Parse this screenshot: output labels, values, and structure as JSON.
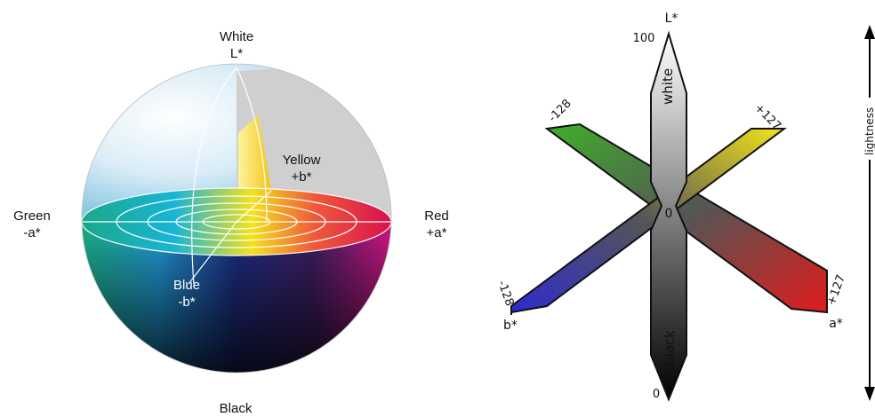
{
  "sphere": {
    "white": "White",
    "l_axis": "L*",
    "black": "Black",
    "yellow": "Yellow",
    "plus_b": "+b*",
    "blue": "Blue",
    "minus_b": "-b*",
    "green": "Green",
    "minus_a": "-a*",
    "red": "Red",
    "plus_a": "+a*"
  },
  "axes_diagram": {
    "l_star": "L*",
    "l_max": "100",
    "l_min": "0",
    "white": "white",
    "black": "black",
    "origin": "0",
    "b_neg": "-128",
    "a_pos": "+127",
    "a_neg": "-128",
    "b_pos": "+127",
    "a_star": "a*",
    "b_star": "b*",
    "lightness": "lightness"
  },
  "colors": {
    "green": "#3fae2a",
    "yellow": "#f2e21b",
    "blue": "#2e2bd0",
    "red": "#e01b1b",
    "gray_panel": "#cfcfcf"
  }
}
